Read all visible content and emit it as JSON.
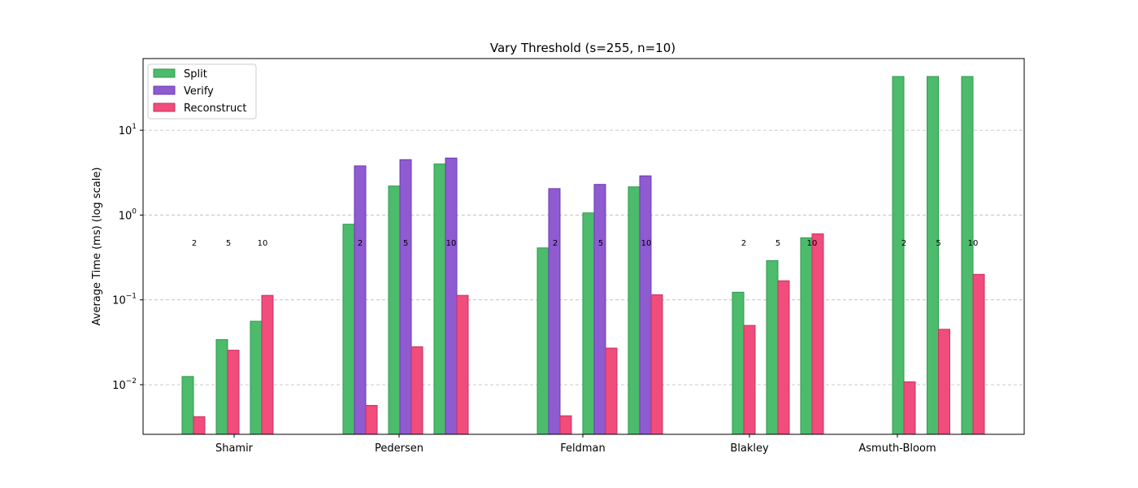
{
  "chart_data": {
    "type": "bar",
    "title": "Vary Threshold (s=255, n=10)",
    "xlabel": "",
    "ylabel": "Average Time (ms) (log scale)",
    "yscale": "log",
    "ylim": [
      0.0026,
      70
    ],
    "yticks": [
      0.01,
      0.1,
      1,
      10
    ],
    "ytick_labels": [
      {
        "base": "10",
        "exp": "−2"
      },
      {
        "base": "10",
        "exp": "−1"
      },
      {
        "base": "10",
        "exp": "0"
      },
      {
        "base": "10",
        "exp": "1"
      }
    ],
    "grid": "horizontal-dashed",
    "legend_position": "top-left",
    "categories": [
      "Shamir",
      "Pedersen",
      "Feldman",
      "Blakley",
      "Asmuth-Bloom"
    ],
    "thresholds": [
      "2",
      "5",
      "10"
    ],
    "series": [
      {
        "name": "Split",
        "color": "#4cbb6c",
        "edge": "#2e9a4e",
        "values": [
          [
            0.0125,
            0.034,
            0.056
          ],
          [
            0.78,
            2.2,
            4.0
          ],
          [
            0.41,
            1.06,
            2.15
          ],
          [
            0.123,
            0.29,
            0.54
          ],
          [
            43,
            43,
            43
          ]
        ]
      },
      {
        "name": "Verify",
        "color": "#8e5bd0",
        "edge": "#6a3bb0",
        "values": [
          [
            null,
            null,
            null
          ],
          [
            3.8,
            4.5,
            4.7
          ],
          [
            2.05,
            2.3,
            2.9
          ],
          [
            null,
            null,
            null
          ],
          [
            null,
            null,
            null
          ]
        ]
      },
      {
        "name": "Reconstruct",
        "color": "#f04c7c",
        "edge": "#c93060",
        "values": [
          [
            0.0042,
            0.0255,
            0.113
          ],
          [
            0.0057,
            0.028,
            0.113
          ],
          [
            0.0043,
            0.027,
            0.115
          ],
          [
            0.05,
            0.168,
            0.6
          ],
          [
            0.0108,
            0.045,
            0.2
          ]
        ]
      }
    ]
  }
}
